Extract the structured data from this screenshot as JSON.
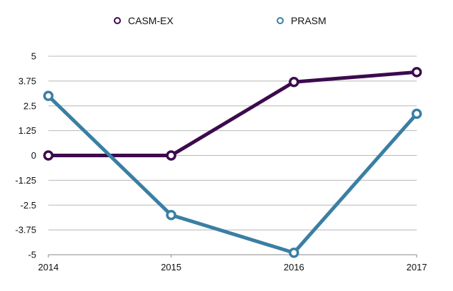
{
  "chart_data": {
    "type": "line",
    "title": "",
    "xlabel": "",
    "ylabel": "",
    "x": [
      "2014",
      "2015",
      "2016",
      "2017"
    ],
    "ylim": [
      -5,
      5
    ],
    "yticks": [
      "5",
      "3.75",
      "2.5",
      "1.25",
      "0",
      "-1.25",
      "-2.5",
      "-3.75",
      "-5"
    ],
    "ytick_values": [
      5,
      3.75,
      2.5,
      1.25,
      0,
      -1.25,
      -2.5,
      -3.75,
      -5
    ],
    "grid": true,
    "legend_position": "top-center",
    "series": [
      {
        "name": "CASM-EX",
        "color": "#3d0a4d",
        "values": [
          0,
          0,
          3.7,
          4.2
        ]
      },
      {
        "name": "PRASM",
        "color": "#3a7fa3",
        "values": [
          3.0,
          -3.0,
          -4.9,
          2.1
        ]
      }
    ]
  }
}
